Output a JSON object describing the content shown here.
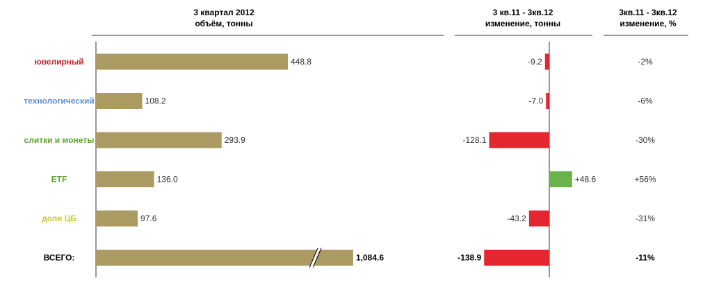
{
  "colors": {
    "volume_bar": "#ac9a63",
    "negative_bar": "#e3262f",
    "positive_bar": "#6ab34b",
    "divider": "#333333"
  },
  "headers": {
    "volume": [
      "3 квартал 2012",
      "объём, тонны"
    ],
    "change_tonnes": [
      "3 кв.11 - 3кв.12",
      "изменение, тонны"
    ],
    "change_pct": [
      "3кв.11 - 3кв.12",
      "изменение, %"
    ]
  },
  "chart_data": {
    "type": "bar",
    "orientation": "horizontal",
    "categories": [
      "ювелирный",
      "технологический",
      "слитки и монеты",
      "ETF",
      "доля ЦБ",
      "ВСЕГО:"
    ],
    "category_colors": [
      "#c0262d",
      "#5b8fd0",
      "#5aa52f",
      "#5aa52f",
      "#c9c62a",
      "#000000"
    ],
    "series": [
      {
        "name": "объём, тонны",
        "values": [
          448.8,
          108.2,
          293.9,
          136.0,
          97.6,
          1084.6
        ],
        "labels": [
          "448.8",
          "108.2",
          "293.9",
          "136.0",
          "97.6",
          "1,084.6"
        ],
        "axis_break_on_last": true
      },
      {
        "name": "изменение, тонны",
        "values": [
          -9.2,
          -7.0,
          -128.1,
          48.6,
          -43.2,
          -138.9
        ],
        "labels": [
          "-9.2",
          "-7.0",
          "-128.1",
          "+48.6",
          "-43.2",
          "-138.9"
        ]
      },
      {
        "name": "изменение, %",
        "values": [
          -2,
          -6,
          -30,
          56,
          -31,
          -11
        ],
        "labels": [
          "-2%",
          "-6%",
          "-30%",
          "+56%",
          "-31%",
          "-11%"
        ]
      }
    ],
    "total_row_bold": true
  }
}
